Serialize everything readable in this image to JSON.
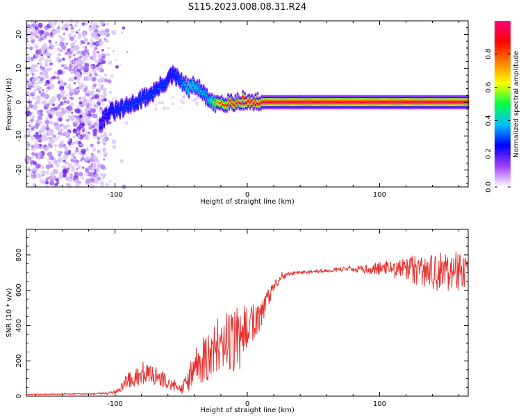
{
  "title": "S115.2023.008.08.31.R24",
  "chart_data": [
    {
      "type": "heatmap",
      "xlabel": "Height of straight line (km)",
      "ylabel": "Frequency (Hz)",
      "xlim": [
        -167,
        167
      ],
      "ylim": [
        -25,
        24
      ],
      "xticks": [
        -100,
        0,
        100
      ],
      "xtick_labels": [
        "-100",
        "0",
        "100"
      ],
      "yticks": [
        -20,
        -10,
        0,
        10,
        20
      ],
      "ytick_labels": [
        "-20",
        "-10",
        "0",
        "10",
        "20"
      ],
      "colorbar": {
        "label": "Normalized spectral amplitude",
        "range": [
          0,
          1
        ],
        "ticks": [
          0.0,
          0.2,
          0.4,
          0.6,
          0.8
        ],
        "tick_labels": [
          "0.0",
          "0.2",
          "0.4",
          "0.6",
          "0.8"
        ],
        "colormap": [
          "#ffffff",
          "#a040ff",
          "#0000ff",
          "#00c0ff",
          "#00ff40",
          "#ffff00",
          "#ff8000",
          "#ff0000",
          "#ff0080"
        ]
      },
      "ridge": {
        "x": [
          -112,
          -105,
          -95,
          -85,
          -75,
          -65,
          -57,
          -50,
          -45,
          -40,
          -35,
          -30,
          -26,
          -22,
          -18,
          -15,
          -10,
          -5,
          0,
          5,
          10,
          167
        ],
        "y": [
          -6,
          -3,
          -2,
          0,
          2,
          5,
          8,
          6,
          4,
          5,
          3,
          1,
          -1,
          0,
          0,
          0,
          0,
          0.6,
          0.2,
          0,
          0,
          0
        ],
        "amplitude": [
          0.2,
          0.25,
          0.3,
          0.3,
          0.3,
          0.3,
          0.25,
          0.35,
          0.45,
          0.45,
          0.4,
          0.4,
          0.6,
          0.8,
          0.85,
          0.85,
          0.9,
          0.9,
          0.95,
          0.95,
          0.95,
          0.95
        ]
      }
    },
    {
      "type": "line",
      "xlabel": "Height of straight line (km)",
      "ylabel": "SNR (10 * v/v)",
      "xlim": [
        -167,
        167
      ],
      "ylim": [
        0,
        945
      ],
      "xticks": [
        -100,
        0,
        100
      ],
      "xtick_labels": [
        "-100",
        "0",
        "100"
      ],
      "yticks": [
        0,
        200,
        400,
        600,
        800
      ],
      "ytick_labels": [
        "0",
        "200",
        "400",
        "600",
        "800"
      ],
      "color": "#e8312e",
      "series": [
        {
          "x": [
            -167,
            -140,
            -120,
            -100,
            -95,
            -90,
            -85,
            -80,
            -75,
            -70,
            -65,
            -60,
            -55,
            -50,
            -45,
            -40,
            -35,
            -30,
            -25,
            -20,
            -15,
            -10,
            -5,
            0,
            5,
            10,
            15,
            20,
            25,
            30,
            40,
            50,
            60,
            70,
            80,
            90,
            100,
            110,
            120,
            130,
            140,
            150,
            160,
            167
          ],
          "y": [
            10,
            12,
            12,
            20,
            50,
            90,
            110,
            120,
            125,
            120,
            100,
            70,
            55,
            40,
            80,
            160,
            200,
            220,
            270,
            310,
            330,
            320,
            360,
            380,
            410,
            460,
            550,
            620,
            660,
            690,
            700,
            705,
            710,
            720,
            715,
            720,
            725,
            730,
            720,
            710,
            700,
            705,
            710,
            690
          ],
          "noise": [
            2,
            3,
            4,
            8,
            25,
            45,
            55,
            60,
            60,
            55,
            50,
            40,
            30,
            30,
            60,
            110,
            130,
            140,
            150,
            160,
            170,
            180,
            160,
            140,
            120,
            100,
            60,
            30,
            20,
            12,
            10,
            10,
            10,
            12,
            15,
            30,
            35,
            40,
            70,
            100,
            110,
            110,
            120,
            80
          ]
        }
      ]
    }
  ]
}
